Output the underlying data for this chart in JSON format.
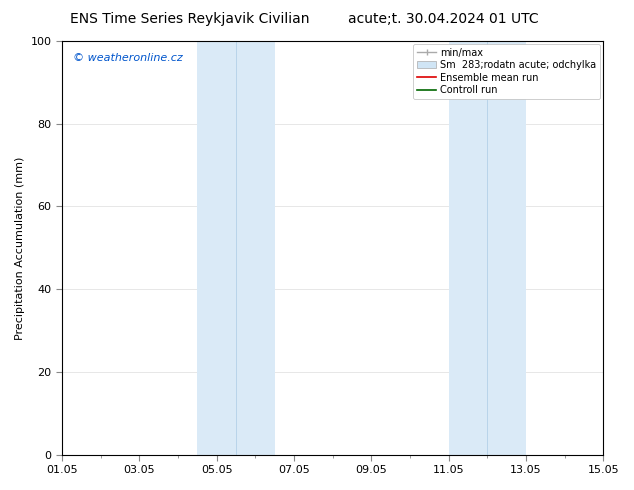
{
  "title_left": "ENS Time Series Reykjavik Civilian",
  "title_right": "acute;t. 30.04.2024 01 UTC",
  "ylabel": "Precipitation Accumulation (mm)",
  "watermark": "© weatheronline.cz",
  "watermark_color": "#0055cc",
  "ylim": [
    0,
    100
  ],
  "yticks": [
    0,
    20,
    40,
    60,
    80,
    100
  ],
  "xtick_labels": [
    "01.05",
    "03.05",
    "05.05",
    "07.05",
    "09.05",
    "11.05",
    "13.05",
    "15.05"
  ],
  "xtick_positions": [
    0,
    2,
    4,
    6,
    8,
    10,
    12,
    14
  ],
  "xlim": [
    0,
    14
  ],
  "background_color": "#ffffff",
  "plot_bg_color": "#ffffff",
  "shaded_regions": [
    {
      "x_start": 3.5,
      "x_end": 4.5,
      "color": "#daeaf7",
      "mid_line": 4.0
    },
    {
      "x_start": 4.5,
      "x_end": 5.5,
      "color": "#daeaf7",
      "mid_line": 5.0
    },
    {
      "x_start": 10.0,
      "x_end": 11.0,
      "color": "#daeaf7",
      "mid_line": 10.5
    },
    {
      "x_start": 11.0,
      "x_end": 12.0,
      "color": "#daeaf7",
      "mid_line": 11.5
    }
  ],
  "legend_entries": [
    {
      "label": "min/max",
      "color": "#aaaaaa",
      "lw": 1.2,
      "style": "solid",
      "type": "line_caps"
    },
    {
      "label": "Sm  283;rodatn acute; odchylka",
      "color": "#d0e5f5",
      "lw": 6,
      "style": "solid",
      "type": "patch"
    },
    {
      "label": "Ensemble mean run",
      "color": "#dd0000",
      "lw": 1.2,
      "style": "solid",
      "type": "line"
    },
    {
      "label": "Controll run",
      "color": "#006600",
      "lw": 1.2,
      "style": "solid",
      "type": "line"
    }
  ],
  "font_size_title": 10,
  "font_size_legend": 7,
  "font_size_axis_label": 8,
  "font_size_tick": 8,
  "font_size_watermark": 8,
  "grid_color": "#dddddd",
  "tick_label_color": "#000000",
  "border_color": "#000000"
}
